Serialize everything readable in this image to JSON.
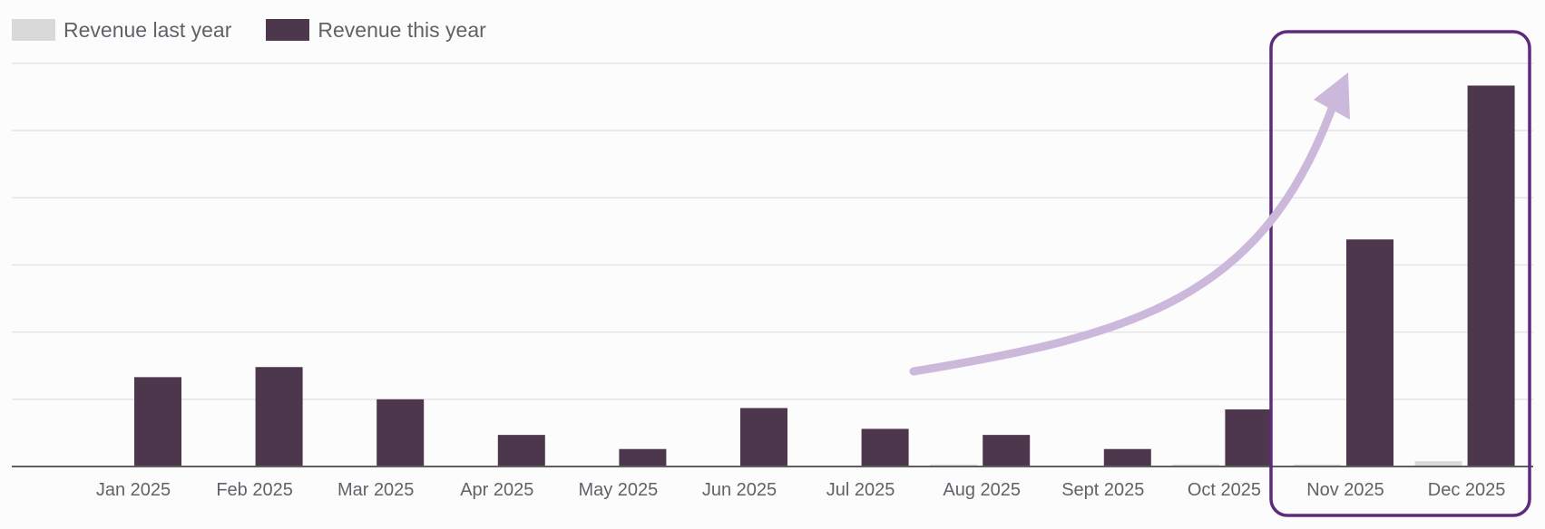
{
  "colors": {
    "last_year": "#d9d9d9",
    "this_year": "#4d374c",
    "gridline": "#e6e3e6",
    "axis": "#5f5f5f",
    "arrow": "#cbb8da",
    "highlight": "#5e2a7e",
    "tick_text": "#5f6368"
  },
  "legend": {
    "last_year_label": "Revenue last year",
    "this_year_label": "Revenue this year"
  },
  "annotation": {
    "arrow_icon": "curved-arrow-up-right",
    "highlight_categories": [
      "Nov 2025",
      "Dec 2025"
    ]
  },
  "chart_data": {
    "type": "bar",
    "title": "",
    "xlabel": "",
    "ylabel": "",
    "ylim": [
      0,
      6
    ],
    "grid": true,
    "legend_position": "top-left",
    "categories": [
      "Jan 2025",
      "Feb 2025",
      "Mar 2025",
      "Apr 2025",
      "May 2025",
      "Jun 2025",
      "Jul 2025",
      "Aug 2025",
      "Sept 2025",
      "Oct 2025",
      "Nov 2025",
      "Dec 2025"
    ],
    "series": [
      {
        "name": "Revenue last year",
        "values": [
          0,
          0,
          0,
          0,
          0,
          0,
          0.01,
          0.03,
          0.01,
          0.03,
          0.03,
          0.08
        ]
      },
      {
        "name": "Revenue this year",
        "values": [
          1.33,
          1.48,
          1.0,
          0.47,
          0.26,
          0.87,
          0.56,
          0.47,
          0.26,
          0.85,
          3.38,
          5.67
        ]
      }
    ]
  }
}
